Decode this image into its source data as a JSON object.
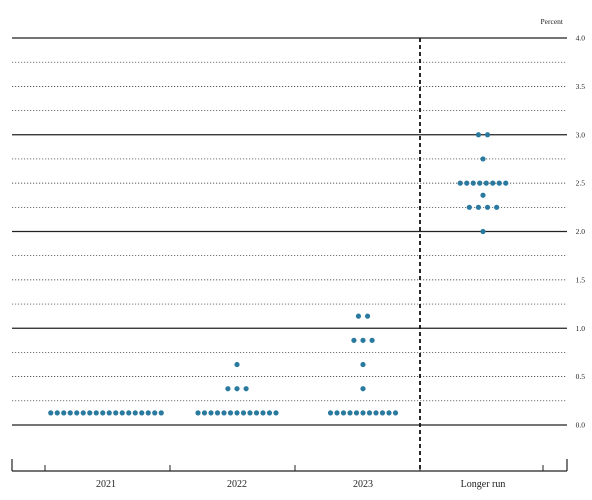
{
  "chart_data": {
    "type": "scatter",
    "subtype": "dot-plot",
    "unit_label": "Percent",
    "categories": [
      "2021",
      "2022",
      "2023",
      "Longer run"
    ],
    "y_ticks": [
      "0.0",
      "0.5",
      "1.0",
      "1.5",
      "2.0",
      "2.5",
      "3.0",
      "3.5",
      "4.0"
    ],
    "ylim": [
      0,
      4.0
    ],
    "grid_step": 0.25,
    "separator_before": "Longer run",
    "dot_color": "#2a7aa0",
    "series": [
      {
        "category": "2021",
        "counts": [
          {
            "y": 0.125,
            "n": 18
          }
        ]
      },
      {
        "category": "2022",
        "counts": [
          {
            "y": 0.125,
            "n": 13
          },
          {
            "y": 0.375,
            "n": 3
          },
          {
            "y": 0.625,
            "n": 1
          }
        ]
      },
      {
        "category": "2023",
        "counts": [
          {
            "y": 0.125,
            "n": 11
          },
          {
            "y": 0.375,
            "n": 1
          },
          {
            "y": 0.625,
            "n": 1
          },
          {
            "y": 0.875,
            "n": 3
          },
          {
            "y": 1.125,
            "n": 2
          }
        ]
      },
      {
        "category": "Longer run",
        "counts": [
          {
            "y": 2.0,
            "n": 1
          },
          {
            "y": 2.25,
            "n": 4
          },
          {
            "y": 2.375,
            "n": 1
          },
          {
            "y": 2.5,
            "n": 8
          },
          {
            "y": 2.75,
            "n": 1
          },
          {
            "y": 3.0,
            "n": 2
          }
        ]
      }
    ]
  }
}
